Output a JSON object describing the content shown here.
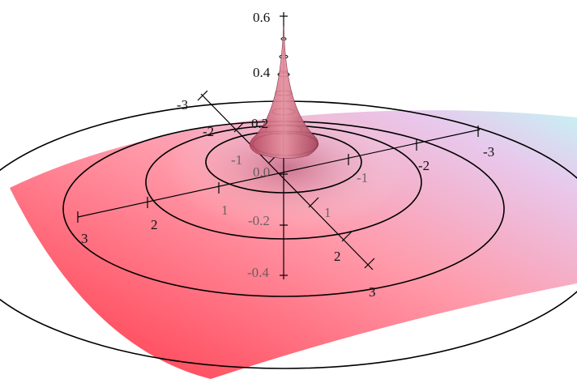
{
  "chart_data": {
    "type": "surface3d",
    "title": "",
    "surface": {
      "shape": "radial spike surface with concentric contour rings",
      "color_low": "#ff4d5c",
      "color_high": "#c8f4f4",
      "peak_color": "#b04860"
    },
    "axes": {
      "x": {
        "range": [
          -3,
          3
        ],
        "tick_labels": [
          "-3",
          "-2",
          "-1",
          "1",
          "2",
          "3"
        ]
      },
      "y": {
        "range": [
          -3,
          3
        ],
        "tick_labels": [
          "-3",
          "-2",
          "-1",
          "1",
          "2",
          "3"
        ]
      },
      "z": {
        "range": [
          -0.4,
          0.6
        ],
        "tick_labels": [
          "0.6",
          "0.4",
          "0.2",
          "0.0",
          "-0.2",
          "-0.4"
        ]
      }
    },
    "contours": {
      "count": 5,
      "color": "#000000"
    },
    "grid": false,
    "legend": ""
  }
}
